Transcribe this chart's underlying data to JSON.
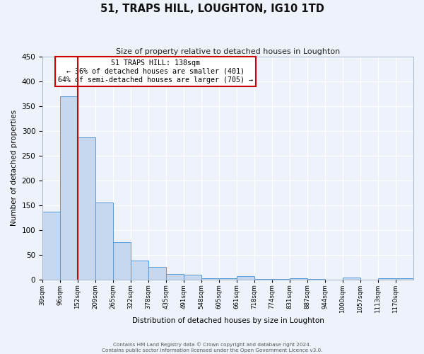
{
  "title": "51, TRAPS HILL, LOUGHTON, IG10 1TD",
  "subtitle": "Size of property relative to detached houses in Loughton",
  "xlabel": "Distribution of detached houses by size in Loughton",
  "ylabel": "Number of detached properties",
  "bar_values": [
    137,
    370,
    287,
    155,
    75,
    38,
    25,
    11,
    9,
    3,
    2,
    7,
    1,
    1,
    3,
    1,
    0,
    4,
    0,
    3,
    2
  ],
  "bin_labels": [
    "39sqm",
    "96sqm",
    "152sqm",
    "209sqm",
    "265sqm",
    "322sqm",
    "378sqm",
    "435sqm",
    "491sqm",
    "548sqm",
    "605sqm",
    "661sqm",
    "718sqm",
    "774sqm",
    "831sqm",
    "887sqm",
    "944sqm",
    "1000sqm",
    "1057sqm",
    "1113sqm",
    "1170sqm"
  ],
  "bar_edges": [
    39,
    96,
    152,
    209,
    265,
    322,
    378,
    435,
    491,
    548,
    605,
    661,
    718,
    774,
    831,
    887,
    944,
    1000,
    1057,
    1113,
    1170
  ],
  "bar_color": "#c5d8f0",
  "bar_edge_color": "#5b9bd5",
  "vline_x": 152,
  "vline_color": "#cc0000",
  "annotation_title": "51 TRAPS HILL: 138sqm",
  "annotation_line1": "← 36% of detached houses are smaller (401)",
  "annotation_line2": "64% of semi-detached houses are larger (705) →",
  "annotation_box_color": "#cc0000",
  "ylim": [
    0,
    450
  ],
  "yticks": [
    0,
    50,
    100,
    150,
    200,
    250,
    300,
    350,
    400,
    450
  ],
  "footer1": "Contains HM Land Registry data © Crown copyright and database right 2024.",
  "footer2": "Contains public sector information licensed under the Open Government Licence v3.0.",
  "background_color": "#eef2fa",
  "grid_color": "#ffffff"
}
